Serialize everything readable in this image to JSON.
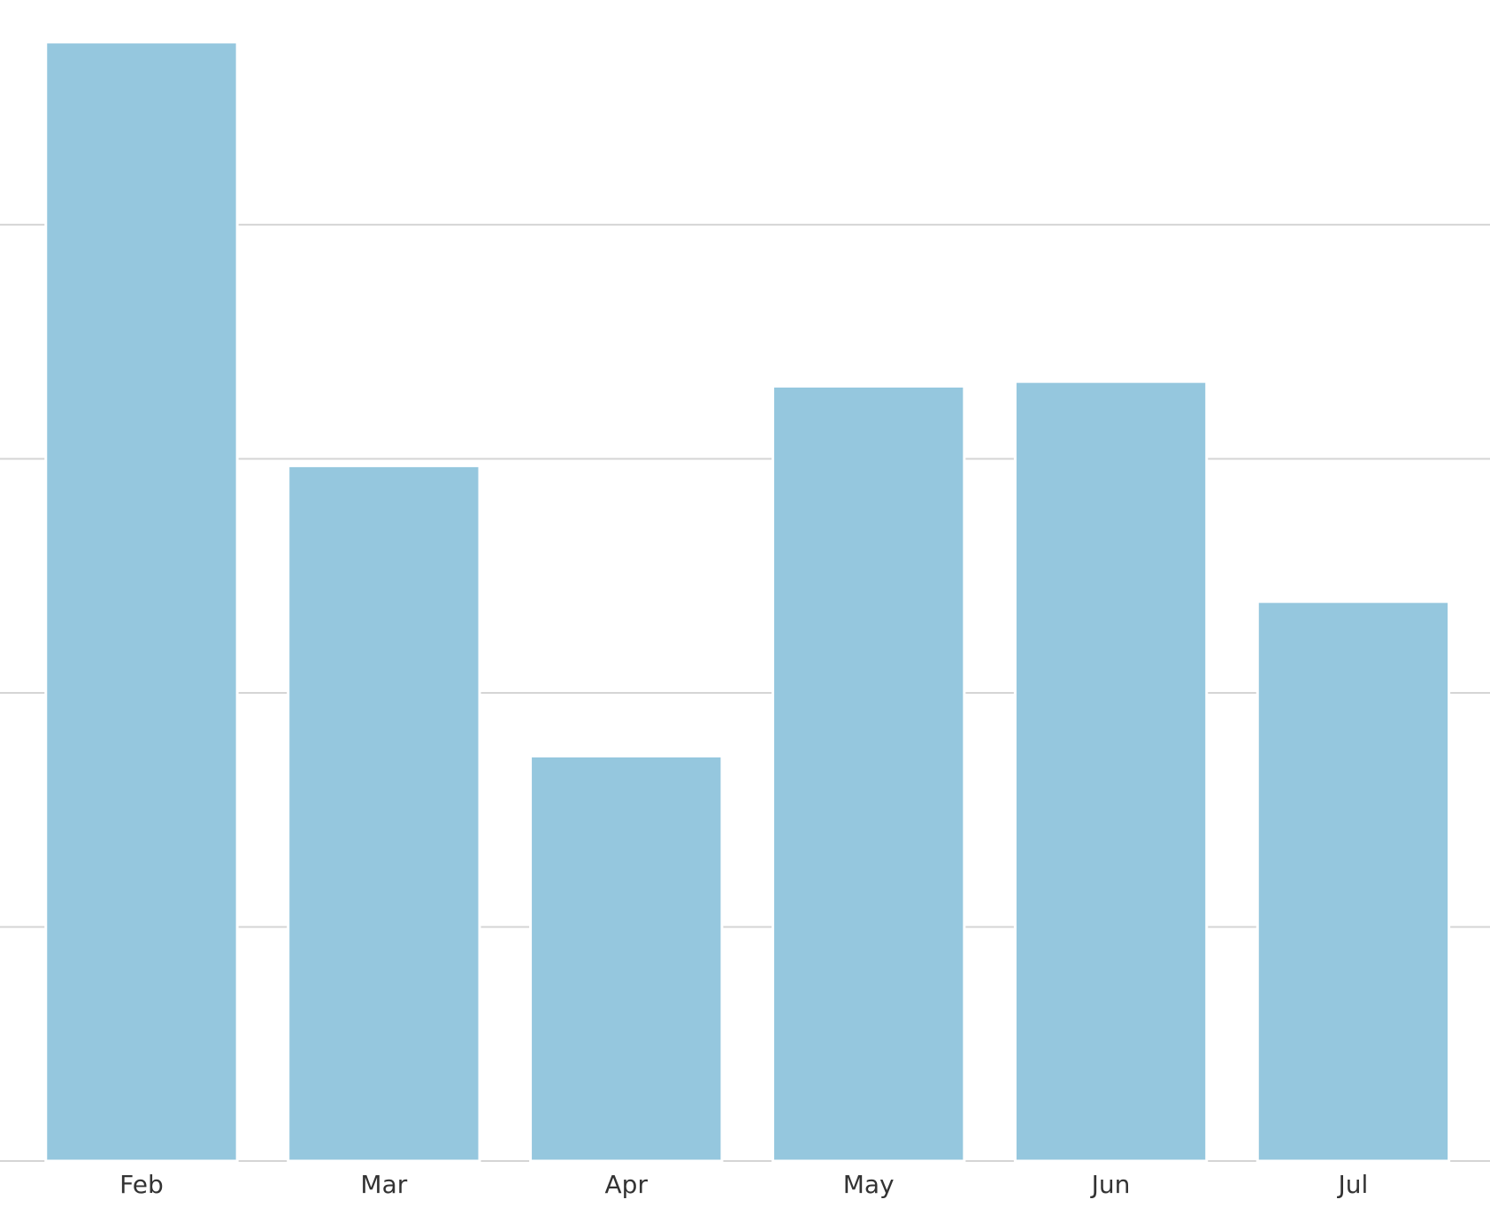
{
  "chart_data": {
    "type": "bar",
    "categories": [
      "Feb",
      "Mar",
      "Apr",
      "May",
      "Jun",
      "Jul"
    ],
    "values": [
      4.78,
      2.97,
      1.73,
      3.31,
      3.33,
      2.39
    ],
    "color": "#95c7de",
    "ylim": [
      0,
      4.96
    ],
    "yticks": [
      0,
      1,
      2,
      3,
      4
    ],
    "grid": true
  }
}
